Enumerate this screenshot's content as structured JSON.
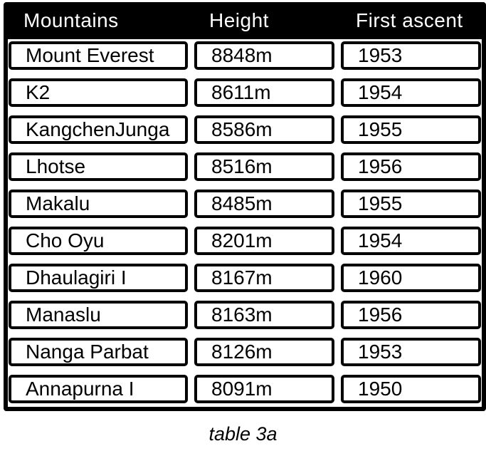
{
  "chart_data": {
    "type": "table",
    "title": "",
    "caption": "table 3a",
    "columns": [
      "Mountains",
      "Height",
      "First ascent"
    ],
    "rows": [
      [
        "Mount Everest",
        "8848m",
        "1953"
      ],
      [
        "K2",
        "8611m",
        "1954"
      ],
      [
        "KangchenJunga",
        "8586m",
        "1955"
      ],
      [
        "Lhotse",
        "8516m",
        "1956"
      ],
      [
        "Makalu",
        "8485m",
        "1955"
      ],
      [
        "Cho Oyu",
        "8201m",
        "1954"
      ],
      [
        "Dhaulagiri I",
        "8167m",
        "1960"
      ],
      [
        "Manaslu",
        "8163m",
        "1956"
      ],
      [
        "Nanga Parbat",
        "8126m",
        "1953"
      ],
      [
        "Annapurna I",
        "8091m",
        "1950"
      ]
    ]
  },
  "colors": {
    "table_bg": "#000000",
    "header_text": "#ffffff",
    "cell_bg": "#ffffff",
    "cell_border": "#000000",
    "cell_text": "#000000"
  }
}
